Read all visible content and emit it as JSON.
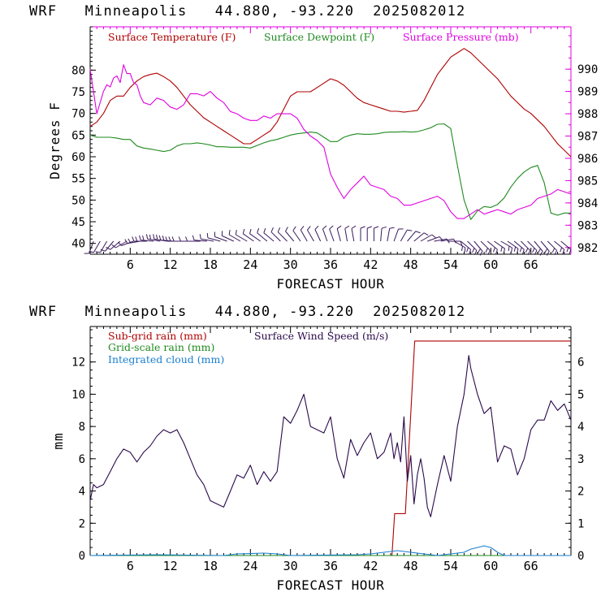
{
  "header": {
    "top_title": "WRF   Minneapolis   44.880, -93.220  2025082012",
    "bottom_title": "WRF   Minneapolis   44.880, -93.220  2025082012"
  },
  "colors": {
    "temperature": "#b00000",
    "dewpoint": "#1f8a1f",
    "pressure": "#e000e0",
    "wind_barbs": "#3a1a5c",
    "subgrid_rain": "#b00000",
    "grid_rain": "#1f8a1f",
    "cloud": "#1a7fd0",
    "wind_speed": "#2a0a4a"
  },
  "chart_data": [
    {
      "type": "line",
      "xlabel": "FORECAST HOUR",
      "ylabel": "Degrees F",
      "xlim": [
        0,
        72
      ],
      "ylim": [
        37.5,
        90
      ],
      "y2lim": [
        981.7,
        991.9
      ],
      "x_ticks": [
        "6",
        "12",
        "18",
        "24",
        "30",
        "36",
        "42",
        "48",
        "54",
        "60",
        "66"
      ],
      "y_ticks": [
        "40",
        "45",
        "50",
        "55",
        "60",
        "65",
        "70",
        "75",
        "80"
      ],
      "y2_ticks": [
        "982",
        "983",
        "984",
        "985",
        "986",
        "987",
        "988",
        "989",
        "990"
      ],
      "grid": false,
      "legend": "top-left",
      "series": [
        {
          "name": "Surface Temperature (F)",
          "axis": "left",
          "x": [
            0,
            1,
            2,
            3,
            4,
            5,
            6,
            7,
            8,
            9,
            10,
            11,
            12,
            13,
            14,
            15,
            16,
            17,
            18,
            19,
            20,
            21,
            22,
            23,
            24,
            25,
            26,
            27,
            28,
            29,
            30,
            31,
            32,
            33,
            34,
            35,
            36,
            37,
            38,
            39,
            40,
            41,
            42,
            43,
            44,
            45,
            46,
            47,
            48,
            49,
            50,
            51,
            52,
            53,
            54,
            55,
            56,
            57,
            58,
            59,
            60,
            61,
            62,
            63,
            64,
            65,
            66,
            67,
            68,
            69,
            70,
            71,
            72
          ],
          "values": [
            67,
            68,
            70,
            73,
            74,
            74,
            76,
            77.5,
            78.5,
            79,
            79.3,
            78.5,
            77.5,
            76,
            74,
            72,
            70.5,
            69,
            68,
            67,
            66,
            65,
            64,
            63,
            63,
            64,
            65,
            66,
            68,
            71,
            74,
            75,
            75,
            75,
            76,
            77,
            78,
            77.5,
            76.5,
            75,
            73.5,
            72.5,
            72,
            71.5,
            71,
            70.5,
            70.5,
            70.3,
            70.5,
            70.7,
            73,
            76,
            79,
            81,
            83,
            84,
            85,
            84,
            82.5,
            81,
            79.5,
            78,
            76,
            74,
            72.5,
            71,
            70,
            68.5,
            67,
            65,
            63,
            61.5,
            60
          ]
        },
        {
          "name": "Surface Dewpoint (F)",
          "axis": "left",
          "x": [
            0,
            1,
            2,
            3,
            4,
            5,
            6,
            7,
            8,
            9,
            10,
            11,
            12,
            13,
            14,
            15,
            16,
            17,
            18,
            19,
            20,
            21,
            22,
            23,
            24,
            25,
            26,
            27,
            28,
            29,
            30,
            31,
            32,
            33,
            34,
            35,
            36,
            37,
            38,
            39,
            40,
            41,
            42,
            43,
            44,
            45,
            46,
            47,
            48,
            49,
            50,
            51,
            52,
            53,
            54,
            55,
            56,
            57,
            58,
            59,
            60,
            61,
            62,
            63,
            64,
            65,
            66,
            67,
            68,
            69,
            70,
            71,
            72
          ],
          "values": [
            65,
            64.5,
            64.5,
            64.5,
            64.3,
            64,
            64,
            62.5,
            62,
            61.8,
            61.5,
            61.2,
            61.5,
            62.5,
            63,
            63,
            63.2,
            63,
            62.7,
            62.3,
            62.3,
            62.2,
            62.2,
            62.2,
            62,
            62.6,
            63.2,
            63.7,
            64,
            64.5,
            65,
            65.3,
            65.5,
            65.7,
            65.5,
            64.5,
            63.5,
            63.5,
            64.5,
            65,
            65.3,
            65.2,
            65.2,
            65.3,
            65.6,
            65.7,
            65.7,
            65.8,
            65.7,
            65.8,
            66.2,
            66.7,
            67.5,
            67.6,
            66.5,
            58,
            50,
            45.5,
            47.5,
            48.5,
            48.3,
            49,
            50.5,
            53,
            55,
            56.5,
            57.5,
            58,
            54,
            47,
            46.5,
            47,
            47
          ]
        },
        {
          "name": "Surface Pressure (mb)",
          "axis": "right",
          "x": [
            0,
            0.5,
            1,
            1.5,
            2,
            2.5,
            3,
            3.5,
            4,
            4.5,
            5,
            5.5,
            6,
            6.5,
            7,
            7.5,
            8,
            9,
            10,
            11,
            12,
            13,
            14,
            15,
            16,
            17,
            18,
            19,
            20,
            21,
            22,
            23,
            24,
            25,
            26,
            27,
            28,
            29,
            30,
            31,
            32,
            33,
            34,
            35,
            36,
            37,
            38,
            39,
            40,
            41,
            42,
            43,
            44,
            45,
            46,
            47,
            48,
            49,
            50,
            51,
            52,
            53,
            54,
            55,
            56,
            57,
            58,
            59,
            60,
            61,
            62,
            63,
            64,
            65,
            66,
            67,
            68,
            69,
            70,
            71,
            72
          ],
          "values": [
            990,
            989,
            988,
            988.5,
            989,
            989.3,
            989.2,
            989.6,
            989.7,
            989.4,
            990.2,
            989.8,
            989.8,
            989.4,
            989.3,
            988.8,
            988.5,
            988.4,
            988.7,
            988.6,
            988.3,
            988.2,
            988.4,
            988.9,
            988.9,
            988.8,
            989,
            988.7,
            988.5,
            988.1,
            988,
            987.8,
            987.7,
            987.7,
            987.9,
            987.8,
            988,
            988,
            988,
            987.8,
            987.3,
            987,
            986.8,
            986.5,
            985.3,
            984.7,
            984.2,
            984.6,
            984.9,
            985.2,
            984.8,
            984.7,
            984.6,
            984.3,
            984.2,
            983.9,
            983.9,
            984,
            984.1,
            984.2,
            984.3,
            984.1,
            983.6,
            983.3,
            983.3,
            983.5,
            983.7,
            983.5,
            983.6,
            983.7,
            983.6,
            983.5,
            983.7,
            983.8,
            983.9,
            984.2,
            984.3,
            984.4,
            984.6,
            984.5,
            984.4
          ]
        }
      ]
    },
    {
      "type": "line",
      "xlabel": "FORECAST HOUR",
      "ylabel": "mm",
      "xlim": [
        0,
        72
      ],
      "ylim": [
        0,
        14.2
      ],
      "y2lim": [
        0,
        7.1
      ],
      "x_ticks": [
        "6",
        "12",
        "18",
        "24",
        "30",
        "36",
        "42",
        "48",
        "54",
        "60",
        "66"
      ],
      "y_ticks": [
        "0",
        "2",
        "4",
        "6",
        "8",
        "10",
        "12"
      ],
      "y2_ticks": [
        "0",
        "1",
        "2",
        "3",
        "4",
        "5",
        "6"
      ],
      "grid": false,
      "legend": "top-left",
      "series": [
        {
          "name": "Sub-grid rain (mm)",
          "axis": "left",
          "x": [
            0,
            45.2,
            45.6,
            47.2,
            48.6,
            50,
            72
          ],
          "values": [
            0,
            0,
            2.6,
            2.6,
            13.3,
            13.3,
            13.3
          ]
        },
        {
          "name": "Grid-scale rain (mm)",
          "axis": "left",
          "x": [
            0,
            72
          ],
          "values": [
            0,
            0
          ]
        },
        {
          "name": "Integrated cloud (mm)",
          "axis": "left",
          "x": [
            0,
            10,
            20,
            22,
            24,
            26,
            28,
            30,
            40,
            42,
            44,
            46,
            48,
            50,
            52,
            54,
            56,
            57,
            58,
            59,
            60,
            61,
            62,
            72
          ],
          "values": [
            0,
            0.05,
            0,
            0.1,
            0.12,
            0.15,
            0.1,
            0,
            0.05,
            0.1,
            0.2,
            0.3,
            0.2,
            0.1,
            0,
            0.1,
            0.2,
            0.4,
            0.5,
            0.6,
            0.5,
            0.2,
            0,
            0
          ]
        },
        {
          "name": "Surface Wind Speed (m/s)",
          "axis": "right",
          "x": [
            0,
            0.5,
            1,
            2,
            3,
            4,
            5,
            6,
            7,
            8,
            9,
            10,
            11,
            12,
            13,
            14,
            15,
            16,
            17,
            18,
            19,
            20,
            21,
            22,
            23,
            24,
            25,
            26,
            27,
            28,
            29,
            30,
            31,
            32,
            33,
            34,
            35,
            36,
            37,
            38,
            39,
            40,
            41,
            42,
            43,
            44,
            45,
            45.5,
            46,
            46.5,
            47,
            47.5,
            48,
            48.5,
            49,
            49.5,
            50,
            50.5,
            51,
            52,
            53,
            54,
            55,
            56,
            56.7,
            57,
            58,
            59,
            60,
            61,
            62,
            63,
            64,
            65,
            66,
            67,
            68,
            69,
            70,
            71,
            72
          ],
          "values": [
            1.7,
            2.2,
            2.1,
            2.2,
            2.6,
            3.0,
            3.3,
            3.2,
            2.9,
            3.2,
            3.4,
            3.7,
            3.9,
            3.8,
            3.9,
            3.5,
            3.0,
            2.5,
            2.2,
            1.7,
            1.6,
            1.5,
            2.0,
            2.5,
            2.4,
            2.8,
            2.2,
            2.6,
            2.3,
            2.6,
            4.3,
            4.1,
            4.5,
            5.0,
            4.0,
            3.9,
            3.8,
            4.3,
            3.0,
            2.4,
            3.6,
            3.1,
            3.5,
            3.8,
            3.0,
            3.2,
            3.8,
            3.0,
            3.5,
            2.9,
            4.3,
            2.3,
            3.1,
            1.6,
            2.5,
            3.0,
            2.4,
            1.5,
            1.2,
            2.2,
            3.1,
            2.3,
            4.0,
            5.0,
            6.2,
            5.8,
            5.0,
            4.4,
            4.6,
            2.9,
            3.4,
            3.3,
            2.5,
            3.0,
            3.9,
            4.2,
            4.2,
            4.8,
            4.5,
            4.7,
            4.2
          ]
        }
      ]
    }
  ],
  "barbs": {
    "x": [
      0.5,
      1.5,
      2.5,
      3.5,
      4.5,
      5.5,
      6.5,
      7.5,
      8.5,
      9.5,
      10.5,
      11.5,
      12.5,
      13.5,
      14.5,
      15.5,
      16.5,
      17.5,
      18.5,
      19.5,
      20.5,
      21.5,
      22.5,
      23.5,
      24.5,
      25.5,
      26.5,
      27.5,
      28.5,
      29.5,
      30.5,
      31.5,
      32.5,
      33.5,
      34.5,
      35.5,
      36.5,
      37.5,
      38.5,
      39.5,
      40.5,
      41.5,
      42.5,
      43.5,
      44.5,
      45.5,
      46.5,
      47.5,
      48.5,
      49.5,
      50.5,
      51.5,
      52.5,
      53.5,
      54.5,
      55.5,
      56.5,
      57.5,
      58.5,
      59.5,
      60.5,
      61.5,
      62.5,
      63.5,
      64.5,
      65.5,
      66.5,
      67.5,
      68.5,
      69.5,
      70.5
    ],
    "direction_deg": [
      200,
      210,
      210,
      220,
      230,
      240,
      250,
      260,
      270,
      275,
      280,
      280,
      275,
      270,
      270,
      270,
      270,
      275,
      280,
      285,
      290,
      295,
      300,
      300,
      305,
      305,
      310,
      310,
      315,
      315,
      320,
      325,
      330,
      330,
      335,
      340,
      340,
      345,
      350,
      350,
      0,
      0,
      0,
      5,
      10,
      20,
      30,
      40,
      50,
      60,
      70,
      80,
      80,
      90,
      120,
      130,
      135,
      140,
      135,
      130,
      125,
      120,
      125,
      130,
      135,
      135,
      140,
      140,
      135,
      130,
      130
    ],
    "speed_kt": [
      5,
      5,
      5,
      5,
      5,
      5,
      5,
      10,
      10,
      10,
      10,
      10,
      10,
      10,
      5,
      5,
      5,
      5,
      5,
      5,
      5,
      5,
      5,
      5,
      5,
      5,
      5,
      5,
      5,
      5,
      5,
      5,
      5,
      5,
      5,
      5,
      5,
      5,
      5,
      5,
      5,
      5,
      5,
      5,
      5,
      5,
      5,
      5,
      5,
      5,
      5,
      5,
      5,
      5,
      10,
      10,
      10,
      10,
      10,
      10,
      10,
      10,
      10,
      10,
      10,
      10,
      10,
      10,
      10,
      10,
      10
    ]
  }
}
